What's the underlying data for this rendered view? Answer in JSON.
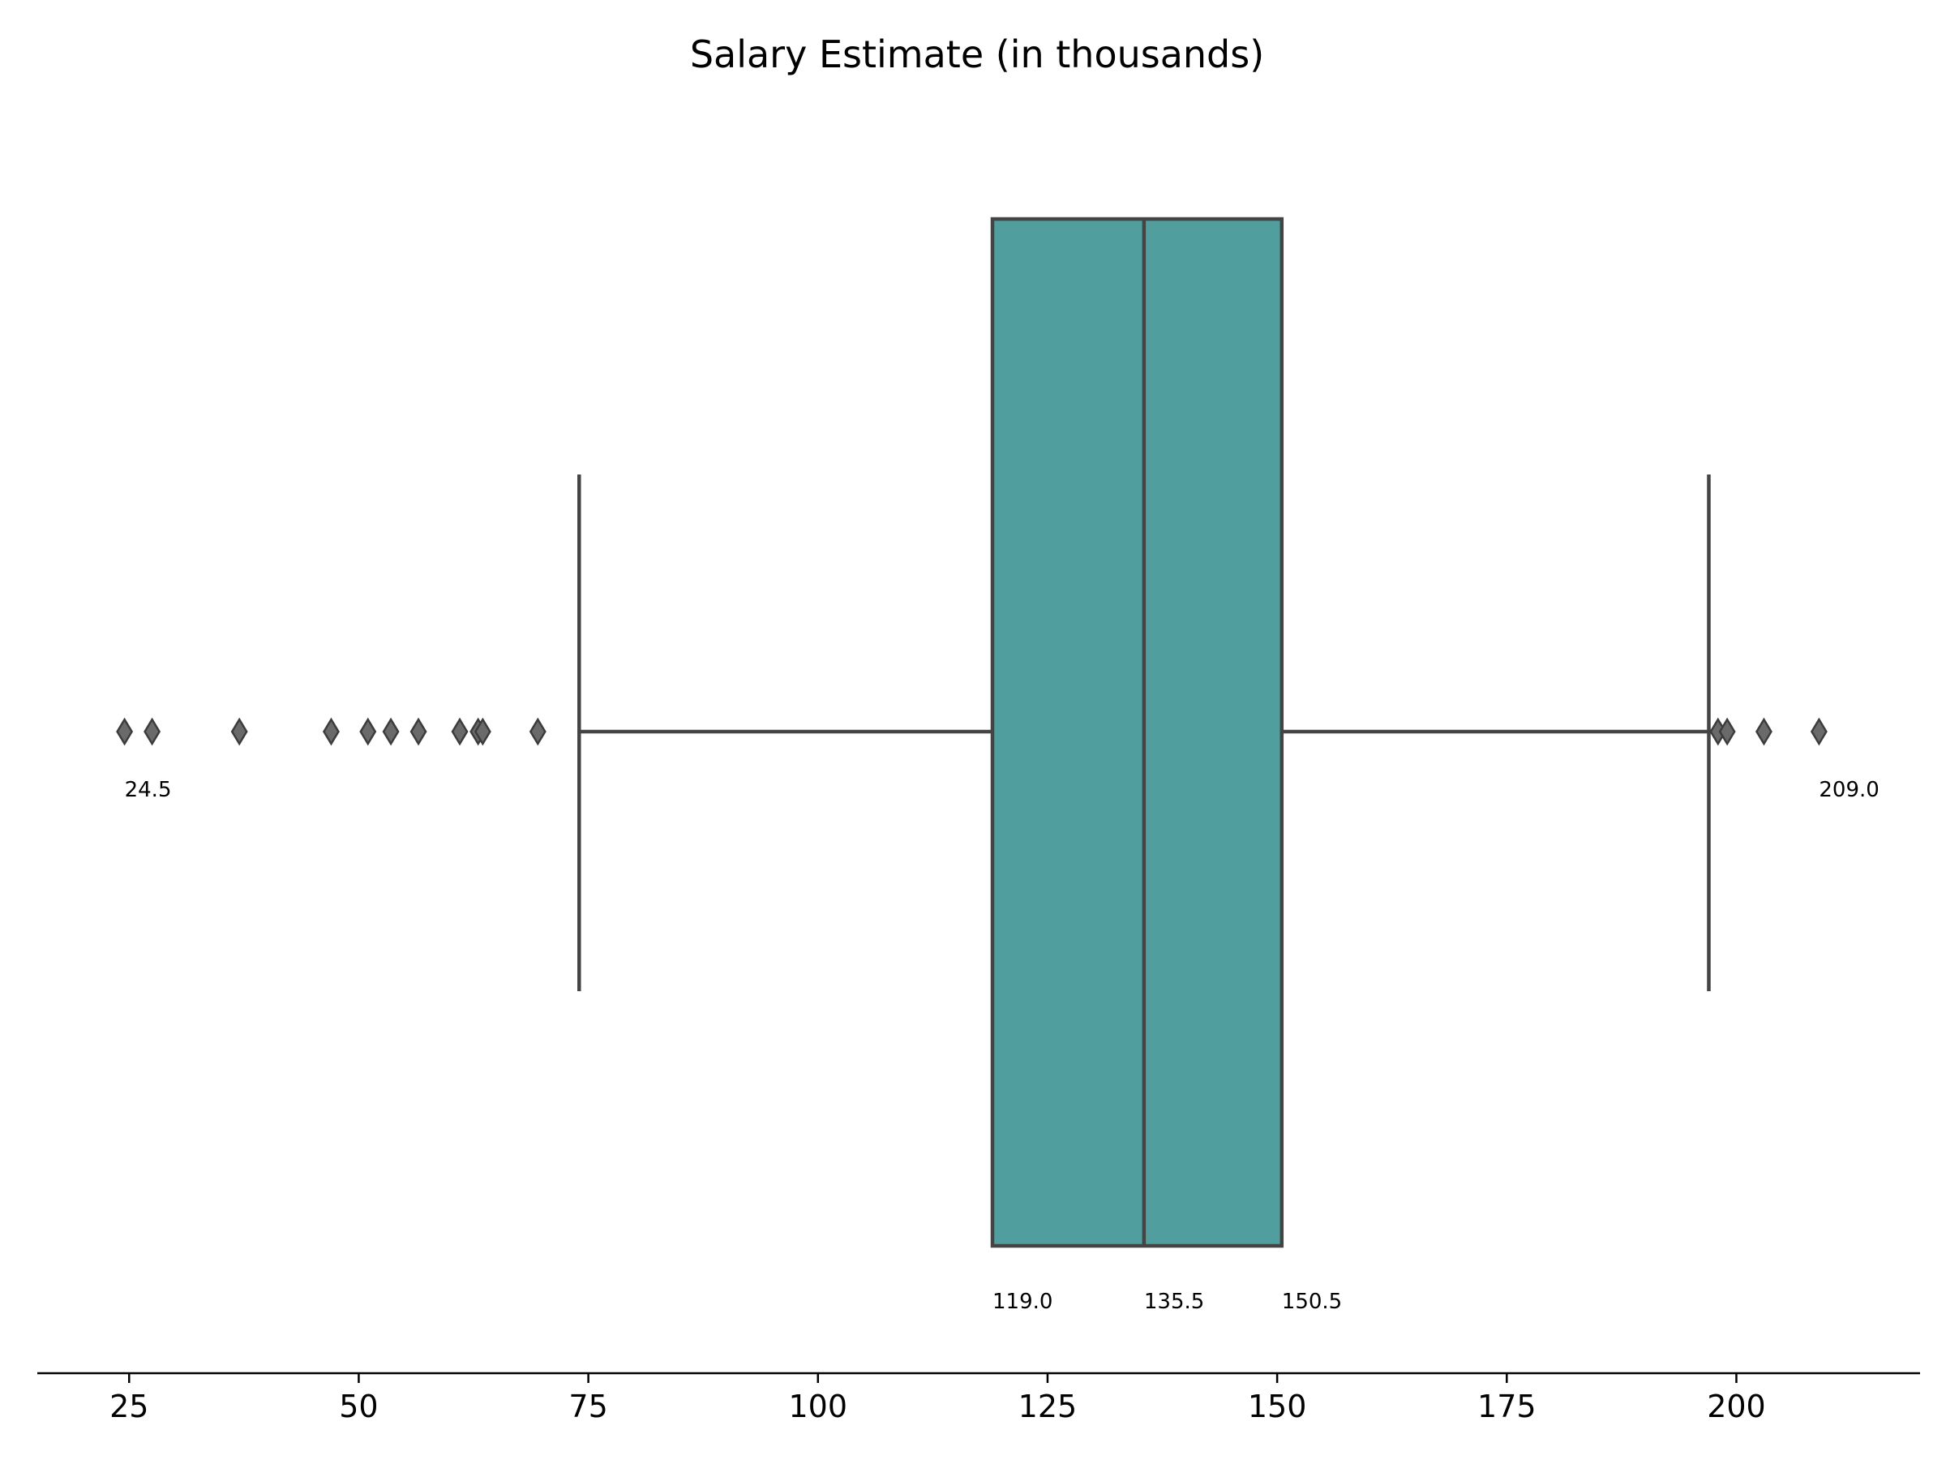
{
  "chart_data": {
    "type": "boxplot",
    "orientation": "horizontal",
    "title": "Salary Estimate (in thousands)",
    "xlabel": "",
    "ylabel": "",
    "xlim": [
      15,
      220
    ],
    "x_ticks": [
      25,
      50,
      75,
      100,
      125,
      150,
      175,
      200
    ],
    "grid": false,
    "box": {
      "q1": 119.0,
      "median": 135.5,
      "q3": 150.5,
      "whisker_low": 74,
      "whisker_high": 197,
      "fill_color": "#519e9f",
      "line_color": "#444444"
    },
    "outliers": [
      24.5,
      27.5,
      37,
      47,
      51,
      53.5,
      56.5,
      61,
      63,
      63.5,
      69.5,
      198,
      199,
      203,
      209.0
    ],
    "annotations": [
      {
        "text": "24.5",
        "x": 24.5,
        "anchor": "outlier"
      },
      {
        "text": "209.0",
        "x": 209.0,
        "anchor": "outlier"
      },
      {
        "text": "119.0",
        "x": 119.0,
        "anchor": "box"
      },
      {
        "text": "135.5",
        "x": 135.5,
        "anchor": "box"
      },
      {
        "text": "150.5",
        "x": 150.5,
        "anchor": "box"
      }
    ]
  }
}
